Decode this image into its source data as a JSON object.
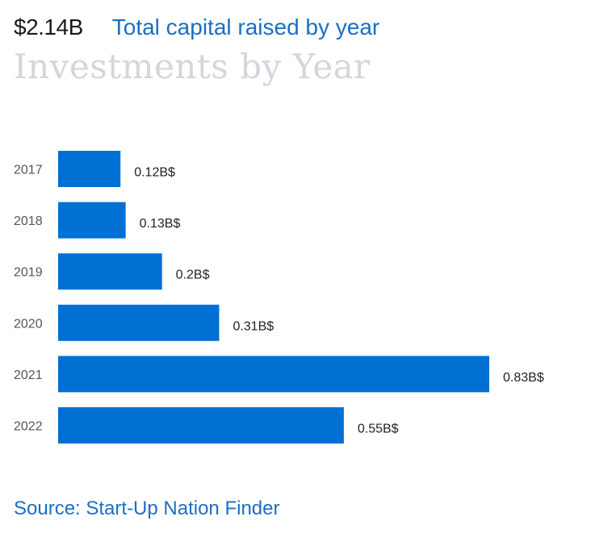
{
  "header": {
    "total_amount": "$2.14B",
    "total_caption": "Total capital raised by year"
  },
  "chart_data": {
    "type": "bar",
    "orientation": "horizontal",
    "title": "Investments by Year",
    "categories": [
      "2017",
      "2018",
      "2019",
      "2020",
      "2021",
      "2022"
    ],
    "values": [
      0.12,
      0.13,
      0.2,
      0.31,
      0.83,
      0.55
    ],
    "value_labels": [
      "0.12B$",
      "0.13B$",
      "0.2B$",
      "0.31B$",
      "0.83B$",
      "0.55B$"
    ],
    "value_unit": "B$",
    "xlabel": "",
    "ylabel": "",
    "xlim": [
      0,
      0.83
    ],
    "grid": false,
    "legend": "none",
    "bar_color": "#0070d2",
    "label_color": "#222222",
    "tick_color": "#555555"
  },
  "footer": {
    "source_text": "Source: Start-Up Nation Finder"
  },
  "colors": {
    "accent": "#1a6fc4",
    "title_muted": "#d3d6da"
  }
}
